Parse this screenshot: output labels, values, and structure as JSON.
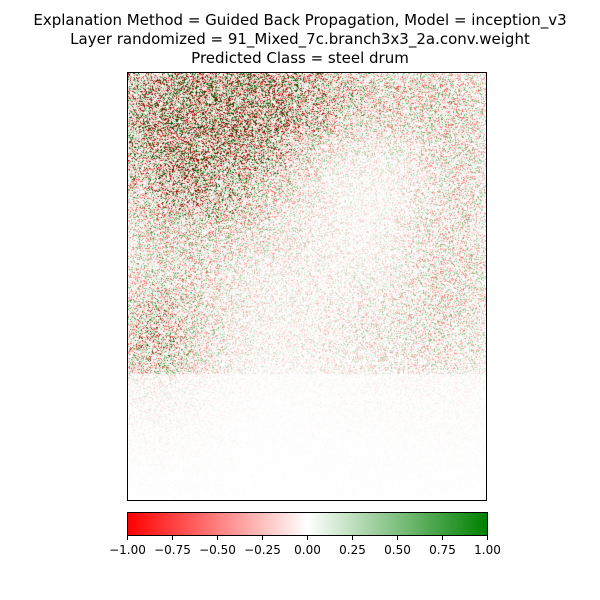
{
  "chart_data": {
    "type": "heatmap",
    "title_lines": [
      "Explanation Method = Guided Back Propagation, Model = inception_v3",
      "Layer randomized = 91_Mixed_7c.branch3x3_2a.conv.weight",
      "Predicted Class = steel drum"
    ],
    "colorbar": {
      "range": [
        -1.0,
        1.0
      ],
      "ticks": [
        -1.0,
        -0.75,
        -0.5,
        -0.25,
        0.0,
        0.25,
        0.5,
        0.75,
        1.0
      ],
      "tick_labels": [
        "−1.00",
        "−0.75",
        "−0.50",
        "−0.25",
        "0.00",
        "0.25",
        "0.50",
        "0.75",
        "1.00"
      ],
      "colors": {
        "min": "#ff0000",
        "mid": "#ffffff",
        "max": "#008000"
      }
    },
    "axes_ticks_visible": false
  }
}
